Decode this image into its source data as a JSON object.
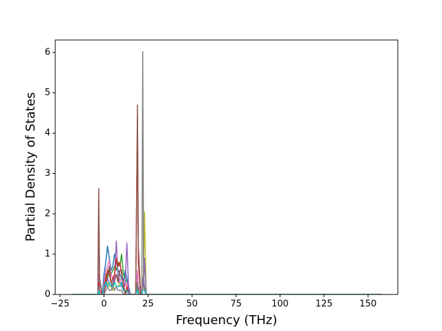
{
  "chart_data": {
    "type": "line",
    "xlabel": "Frequency (THz)",
    "ylabel": "Partial Density of States",
    "x": [
      -18,
      -3.5,
      -3,
      -2.5,
      -1,
      0,
      1,
      2,
      3,
      4,
      5,
      6,
      7,
      8,
      9,
      10,
      11,
      12,
      13,
      14,
      15,
      17,
      18,
      19,
      19.5,
      20.5,
      21,
      21.5,
      22,
      22.5,
      23,
      24,
      158
    ],
    "series": [
      {
        "color": "#1f77b4",
        "values": [
          0,
          0,
          0.4,
          0.1,
          0,
          0.5,
          0.8,
          1.2,
          0.9,
          0.6,
          0.7,
          1.0,
          0.8,
          0.6,
          0.5,
          0.4,
          0.3,
          0.6,
          0.4,
          0.2,
          0,
          0,
          0,
          0.2,
          0.1,
          0.1,
          0,
          0,
          0.3,
          0.5,
          0.1,
          0,
          0
        ]
      },
      {
        "color": "#2ca02c",
        "values": [
          0,
          0,
          0.1,
          0,
          0,
          0.3,
          0.5,
          0.4,
          0.6,
          0.5,
          0.6,
          0.7,
          0.6,
          0.8,
          0.7,
          1.0,
          0.5,
          0.4,
          0.3,
          0.1,
          0,
          0,
          0,
          0.2,
          0,
          0,
          0,
          0,
          0.2,
          0.3,
          0.1,
          0,
          0
        ]
      },
      {
        "color": "#e377c2",
        "values": [
          0,
          0,
          0.5,
          0.1,
          0,
          0.3,
          0.6,
          0.7,
          0.85,
          0.5,
          0.4,
          0.3,
          0.5,
          0.3,
          0.4,
          0.3,
          0.2,
          0.2,
          0.3,
          0,
          0,
          0,
          0,
          0.6,
          0.2,
          0,
          0,
          0,
          0.1,
          0.3,
          0.2,
          0,
          0
        ]
      },
      {
        "color": "#bcbd22",
        "values": [
          0,
          0,
          0,
          0,
          0,
          0.1,
          0.2,
          0.3,
          0.2,
          0.2,
          0.1,
          0.3,
          0.2,
          0.2,
          0.3,
          0.2,
          0.1,
          0.1,
          0.1,
          0,
          0,
          0,
          0,
          0.1,
          0.1,
          0,
          0,
          0,
          0.3,
          0.5,
          2.05,
          0,
          0
        ]
      },
      {
        "color": "#9467bd",
        "values": [
          0,
          0,
          2.2,
          0.3,
          0,
          0.1,
          0.2,
          0.4,
          0.3,
          0.2,
          0.3,
          0.5,
          1.33,
          0.4,
          0.3,
          0.2,
          0.1,
          0.3,
          1.28,
          0.1,
          0,
          0,
          0,
          0.3,
          0.1,
          0.2,
          0,
          0,
          0.4,
          0.2,
          0.9,
          0,
          0
        ]
      },
      {
        "color": "#d62728",
        "values": [
          0,
          0,
          0.3,
          0.1,
          0,
          0.2,
          0.4,
          0.6,
          0.5,
          0.3,
          0.4,
          0.5,
          0.9,
          0.7,
          0.8,
          0.5,
          0.3,
          0,
          0.2,
          0,
          0,
          0,
          0,
          4.35,
          0.8,
          0.2,
          0,
          0,
          0,
          0,
          0,
          0,
          0
        ]
      },
      {
        "color": "#8c564b",
        "values": [
          0,
          0,
          2.63,
          0.4,
          0,
          0,
          0.3,
          0.5,
          0.7,
          0.3,
          0.2,
          0.4,
          0.5,
          0.3,
          0.6,
          0.6,
          0.2,
          0,
          0.1,
          0,
          0,
          0,
          0,
          4.7,
          1.2,
          0.3,
          0,
          0,
          0,
          0,
          0,
          0,
          0
        ]
      },
      {
        "color": "#7f7f7f",
        "values": [
          0,
          0,
          0.2,
          0,
          0,
          0,
          0.1,
          0.2,
          0.1,
          0.1,
          0.2,
          0.1,
          0.2,
          0.1,
          0.1,
          0.1,
          0,
          0,
          0,
          0,
          0,
          0,
          0,
          0.3,
          0.1,
          0,
          0,
          0,
          6.02,
          0.4,
          0.2,
          0,
          0
        ]
      },
      {
        "color": "#17becf",
        "values": [
          0,
          0,
          0.1,
          0,
          0,
          0.2,
          0.3,
          0.2,
          0.3,
          0.2,
          0.2,
          0.3,
          0.2,
          0.2,
          0.2,
          0.3,
          0.1,
          0.1,
          0.1,
          0,
          0,
          0,
          0,
          0.1,
          0,
          0,
          0,
          0,
          0.1,
          0.1,
          0.1,
          0,
          0
        ]
      }
    ],
    "xlim": [
      -27.7,
      166.9
    ],
    "xticks": [
      {
        "value": -25,
        "label": "−25"
      },
      0,
      25,
      50,
      75,
      100,
      125,
      150
    ],
    "ylim": [
      0,
      6.31
    ],
    "yticks": [
      0,
      1,
      2,
      3,
      4,
      5,
      6
    ],
    "grid": false
  }
}
